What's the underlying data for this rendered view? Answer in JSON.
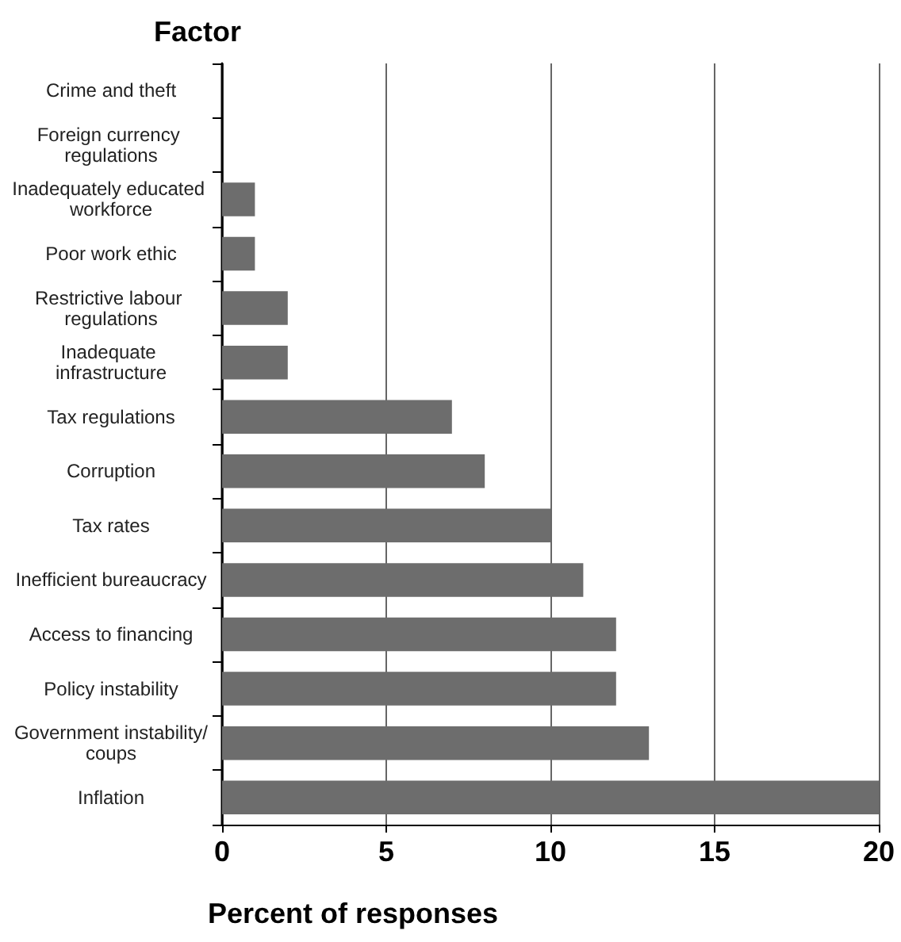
{
  "chart_data": {
    "type": "bar",
    "orientation": "horizontal",
    "ylabel": "Factor",
    "xlabel": "Percent of responses",
    "categories": [
      "Crime and theft",
      "Foreign currency regulations",
      "Inadequately educated workforce",
      "Poor work ethic",
      "Restrictive labour regulations",
      "Inadequate infrastructure",
      "Tax regulations",
      "Corruption",
      "Tax rates",
      "Inefficient bureaucracy",
      "Access to financing",
      "Policy instability",
      "Government instability/coups",
      "Inflation"
    ],
    "values": [
      0,
      0,
      1,
      1,
      2,
      2,
      7,
      8,
      10,
      11,
      12,
      12,
      13,
      20
    ],
    "color": "#6d6d6d",
    "xlim": [
      0,
      20
    ],
    "xticks": [
      0,
      5,
      10,
      15,
      20
    ],
    "grid": "x"
  }
}
